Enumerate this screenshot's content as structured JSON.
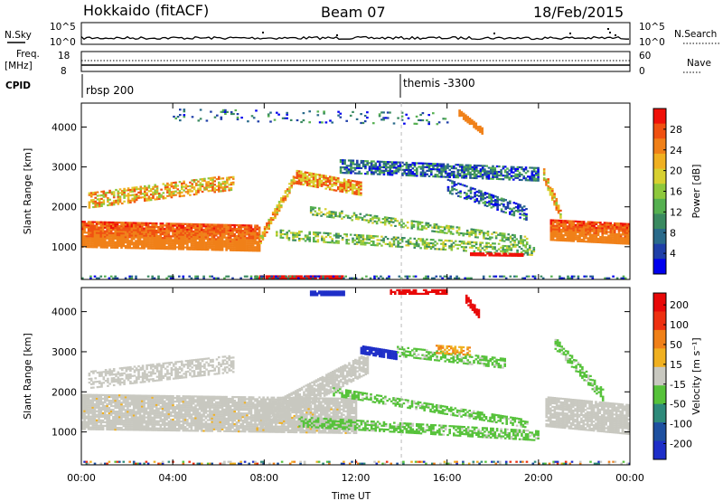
{
  "header": {
    "station": "Hokkaido (fitACF)",
    "beam": "Beam 07",
    "date": "18/Feb/2015"
  },
  "top_panels": {
    "nsky_label": "N.Sky",
    "nsearch_label": "N.Search",
    "nsky_ticks": [
      "10^5",
      "10^0"
    ],
    "nsearch_ticks": [
      "10^5",
      "10^0"
    ],
    "freq_label_1": "Freq.",
    "freq_label_2": "[MHz]",
    "freq_ticks": [
      "18",
      "8"
    ],
    "nave_label": "Nave",
    "nave_ticks": [
      "60",
      "0"
    ],
    "cpid_label": "CPID",
    "cpid_entries": [
      {
        "time_ut": "00:00",
        "label": "rbsp 200"
      },
      {
        "time_ut": "14:00",
        "label": "themis -3300"
      }
    ]
  },
  "chart_data": [
    {
      "type": "heatmap",
      "name": "power",
      "ylabel": "Slant Range [km]",
      "xlabel": "",
      "xlim_hours": [
        0,
        24
      ],
      "ylim": [
        180,
        4600
      ],
      "yticks": [
        "1000",
        "2000",
        "3000",
        "4000"
      ],
      "colorbar": {
        "label": "Power [dB]",
        "ticks": [
          "4",
          "8",
          "12",
          "16",
          "20",
          "24",
          "28"
        ],
        "colors": [
          "#0000ee",
          "#1f3fa8",
          "#2a6a8a",
          "#3a8a60",
          "#55b050",
          "#8ec83c",
          "#d8d030",
          "#f0b020",
          "#f08018",
          "#f05010",
          "#f01008"
        ]
      }
    },
    {
      "type": "heatmap",
      "name": "velocity",
      "ylabel": "Slant Range [km]",
      "xlabel": "Time UT",
      "xlim_hours": [
        0,
        24
      ],
      "ylim": [
        180,
        4600
      ],
      "xticks": [
        "00:00",
        "04:00",
        "08:00",
        "12:00",
        "16:00",
        "20:00",
        "00:00"
      ],
      "yticks": [
        "1000",
        "2000",
        "3000",
        "4000"
      ],
      "colorbar": {
        "label": "Velocity [m s⁻¹]",
        "ticks": [
          "200",
          "100",
          "50",
          "15",
          "-15",
          "-50",
          "-100",
          "-200"
        ],
        "colors": [
          "#1e2ec8",
          "#1e50a0",
          "#2e8a7a",
          "#56c23a",
          "#c8c8c0",
          "#f0b020",
          "#f08018",
          "#ee3010",
          "#e80808"
        ]
      }
    }
  ]
}
